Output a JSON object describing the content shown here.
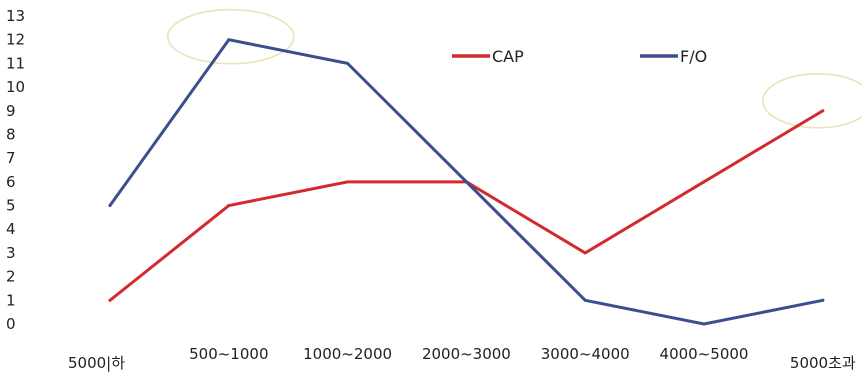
{
  "chart_data": {
    "type": "line",
    "categories": [
      "5000|하",
      "500~1000",
      "1000~2000",
      "2000~3000",
      "3000~4000",
      "4000~5000",
      "5000초과"
    ],
    "series": [
      {
        "name": "CAP",
        "color": "#d42a2f",
        "values": [
          1,
          5,
          6,
          6,
          3,
          6,
          9
        ]
      },
      {
        "name": "F/O",
        "color": "#3b4f8c",
        "values": [
          5,
          12,
          11,
          6,
          1,
          0,
          1
        ]
      }
    ],
    "ylim": [
      0,
      13
    ],
    "yticks": [
      0,
      1,
      2,
      3,
      4,
      5,
      6,
      7,
      8,
      9,
      10,
      11,
      12,
      13
    ],
    "title": "",
    "xlabel": "",
    "ylabel": "",
    "grid": false,
    "legend_position": "top-right",
    "highlight_ellipse_color": "#e8e4b8",
    "highlights": [
      {
        "category": "500~1000",
        "value": 12
      },
      {
        "category": "5000초과",
        "value": 9
      }
    ]
  }
}
